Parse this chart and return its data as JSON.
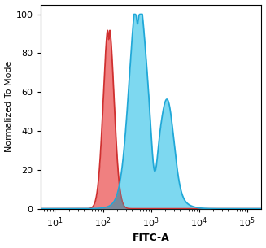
{
  "title": "",
  "xlabel": "FITC-A",
  "ylabel": "Normalized To Mode",
  "xlim_log": [
    0.7,
    5.3
  ],
  "ylim": [
    0,
    105
  ],
  "yticks": [
    0,
    20,
    40,
    60,
    80,
    100
  ],
  "background_color": "#ffffff",
  "red_fill_color": "#f08080",
  "red_line_color": "#d03030",
  "blue_fill_color": "#7dd8f0",
  "blue_line_color": "#20a8d8",
  "overlap_color": "#7a7a8a",
  "line_width": 1.3,
  "xlabel_fontsize": 9,
  "ylabel_fontsize": 8,
  "tick_fontsize": 8,
  "xlabel_fontweight": "bold",
  "fig_width": 3.27,
  "fig_height": 3.05,
  "dpi": 100
}
